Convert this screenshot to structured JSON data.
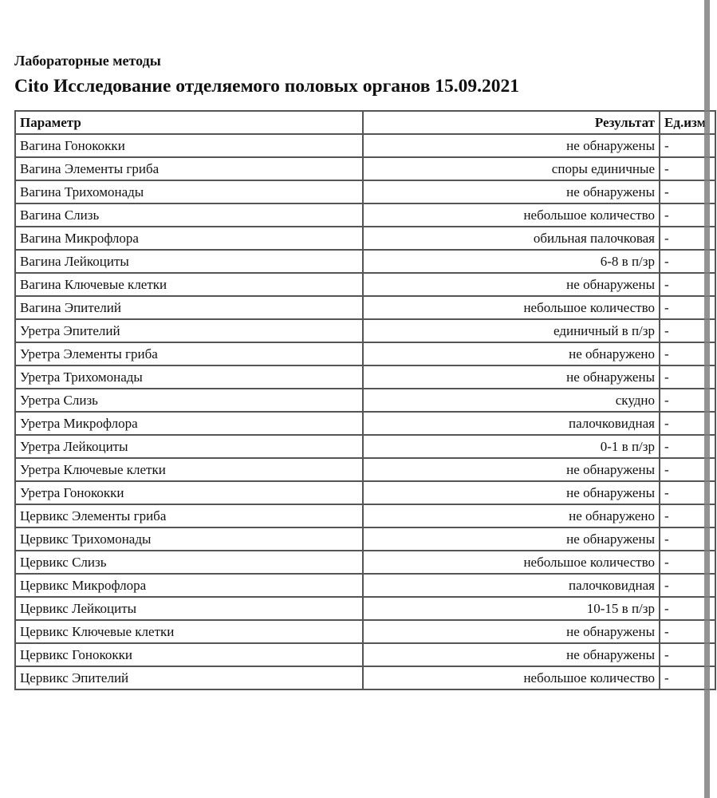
{
  "section_label": "Лабораторные методы",
  "title": "Cito Исследование отделяемого половых органов 15.09.2021",
  "table": {
    "headers": [
      "Параметр",
      "Результат",
      "Ед.изм"
    ],
    "rows": [
      [
        "Вагина Гонококки",
        "не обнаружены",
        "-"
      ],
      [
        "Вагина Элементы гриба",
        "споры единичные",
        "-"
      ],
      [
        "Вагина Трихомонады",
        "не обнаружены",
        "-"
      ],
      [
        "Вагина Слизь",
        "небольшое количество",
        "-"
      ],
      [
        "Вагина Микрофлора",
        "обильная палочковая",
        "-"
      ],
      [
        "Вагина Лейкоциты",
        "6-8 в п/зр",
        "-"
      ],
      [
        "Вагина Ключевые клетки",
        "не обнаружены",
        "-"
      ],
      [
        "Вагина Эпителий",
        "небольшое количество",
        "-"
      ],
      [
        "Уретра Эпителий",
        "единичный в п/зр",
        "-"
      ],
      [
        "Уретра Элементы гриба",
        "не обнаружено",
        "-"
      ],
      [
        "Уретра Трихомонады",
        "не обнаружены",
        "-"
      ],
      [
        "Уретра Слизь",
        "скудно",
        "-"
      ],
      [
        "Уретра Микрофлора",
        "палочковидная",
        "-"
      ],
      [
        "Уретра Лейкоциты",
        "0-1 в п/зр",
        "-"
      ],
      [
        "Уретра Ключевые клетки",
        "не обнаружены",
        "-"
      ],
      [
        "Уретра Гонококки",
        "не обнаружены",
        "-"
      ],
      [
        "Цервикс Элементы гриба",
        "не обнаружено",
        "-"
      ],
      [
        "Цервикс Трихомонады",
        "не обнаружены",
        "-"
      ],
      [
        "Цервикс Слизь",
        "небольшое количество",
        "-"
      ],
      [
        "Цервикс Микрофлора",
        "палочковидная",
        "-"
      ],
      [
        "Цервикс Лейкоциты",
        "10-15 в п/зр",
        "-"
      ],
      [
        "Цервикс Ключевые клетки",
        "не обнаружены",
        "-"
      ],
      [
        "Цервикс Гонококки",
        "не обнаружены",
        "-"
      ],
      [
        "Цервикс Эпителий",
        "небольшое количество",
        "-"
      ]
    ]
  }
}
